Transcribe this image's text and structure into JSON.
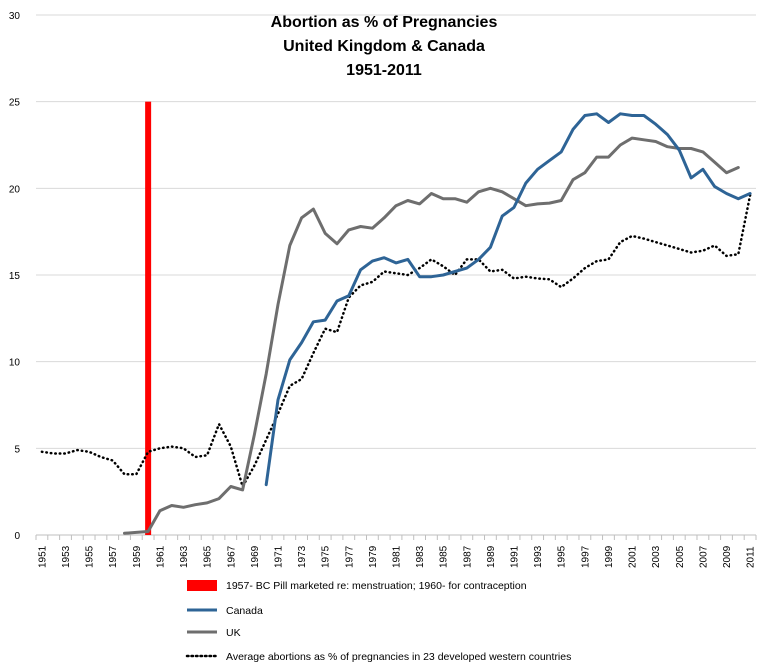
{
  "chart_data": {
    "type": "line",
    "title": [
      "Abortion as % of Pregnancies",
      "United Kingdom & Canada",
      "1951-2011"
    ],
    "ylim": [
      0,
      30
    ],
    "yticks": [
      0,
      5,
      10,
      15,
      20,
      25,
      30
    ],
    "xlim": [
      1951,
      2011
    ],
    "xtick_labels": [
      "1951",
      "1953",
      "1955",
      "1957",
      "1959",
      "1961",
      "1963",
      "1965",
      "1967",
      "1969",
      "1971",
      "1973",
      "1975",
      "1977",
      "1979",
      "1981",
      "1983",
      "1985",
      "1987",
      "1989",
      "1991",
      "1993",
      "1995",
      "1997",
      "1999",
      "2001",
      "2003",
      "2005",
      "2007",
      "2009",
      "2011"
    ],
    "gridlines": "horizontal",
    "legend_position": "bottom",
    "marker": {
      "name": "1957- BC Pill marketed re: menstruation; 1960- for contraception",
      "x": 1960,
      "y_range": [
        0,
        25
      ],
      "color": "#ff0000"
    },
    "series": [
      {
        "name": "Canada",
        "color": "#2e6496",
        "style": "solid",
        "x": [
          1970,
          1971,
          1972,
          1973,
          1974,
          1975,
          1976,
          1977,
          1978,
          1979,
          1980,
          1981,
          1982,
          1983,
          1984,
          1985,
          1986,
          1987,
          1988,
          1989,
          1990,
          1991,
          1992,
          1993,
          1994,
          1995,
          1996,
          1997,
          1998,
          1999,
          2000,
          2001,
          2002,
          2003,
          2004,
          2005,
          2006,
          2007,
          2008,
          2009,
          2010,
          2011
        ],
        "values": [
          2.9,
          7.8,
          10.1,
          11.1,
          12.3,
          12.4,
          13.5,
          13.8,
          15.3,
          15.8,
          16.0,
          15.7,
          15.9,
          14.9,
          14.9,
          15.0,
          15.2,
          15.4,
          15.9,
          16.6,
          18.4,
          18.9,
          20.3,
          21.1,
          21.6,
          22.1,
          23.4,
          24.2,
          24.3,
          23.8,
          24.3,
          24.2,
          24.2,
          23.7,
          23.1,
          22.2,
          20.6,
          21.1,
          20.1,
          19.7,
          19.4,
          19.7
        ]
      },
      {
        "name": "UK",
        "color": "#6e6e6e",
        "style": "solid",
        "x": [
          1958,
          1959,
          1960,
          1961,
          1962,
          1963,
          1964,
          1965,
          1966,
          1967,
          1968,
          1969,
          1970,
          1971,
          1972,
          1973,
          1974,
          1975,
          1976,
          1977,
          1978,
          1979,
          1980,
          1981,
          1982,
          1983,
          1984,
          1985,
          1986,
          1987,
          1988,
          1989,
          1990,
          1991,
          1992,
          1993,
          1994,
          1995,
          1996,
          1997,
          1998,
          1999,
          2000,
          2001,
          2002,
          2003,
          2004,
          2005,
          2006,
          2007,
          2008,
          2009,
          2010
        ],
        "values": [
          0.1,
          0.15,
          0.2,
          1.4,
          1.7,
          1.6,
          1.75,
          1.85,
          2.1,
          2.8,
          2.6,
          5.8,
          9.3,
          13.3,
          16.7,
          18.3,
          18.8,
          17.4,
          16.8,
          17.6,
          17.8,
          17.7,
          18.3,
          19.0,
          19.3,
          19.1,
          19.7,
          19.4,
          19.4,
          19.2,
          19.8,
          20.0,
          19.8,
          19.4,
          19.0,
          19.1,
          19.15,
          19.3,
          20.5,
          20.9,
          21.8,
          21.8,
          22.5,
          22.9,
          22.8,
          22.7,
          22.4,
          22.3,
          22.3,
          22.1,
          21.5,
          20.9,
          21.2
        ]
      },
      {
        "name": "Average abortions as % of pregnancies in 23 developed western countries",
        "color": "#000000",
        "style": "dotted",
        "x": [
          1951,
          1952,
          1953,
          1954,
          1955,
          1956,
          1957,
          1958,
          1959,
          1960,
          1961,
          1962,
          1963,
          1964,
          1965,
          1966,
          1967,
          1968,
          1969,
          1970,
          1971,
          1972,
          1973,
          1974,
          1975,
          1976,
          1977,
          1978,
          1979,
          1980,
          1981,
          1982,
          1983,
          1984,
          1985,
          1986,
          1987,
          1988,
          1989,
          1990,
          1991,
          1992,
          1993,
          1994,
          1995,
          1996,
          1997,
          1998,
          1999,
          2000,
          2001,
          2002,
          2003,
          2004,
          2005,
          2006,
          2007,
          2008,
          2009,
          2010,
          2011
        ],
        "values": [
          4.8,
          4.7,
          4.7,
          4.9,
          4.8,
          4.5,
          4.3,
          3.5,
          3.5,
          4.8,
          5.0,
          5.1,
          5.0,
          4.5,
          4.6,
          6.4,
          5.1,
          2.8,
          4.0,
          5.5,
          7.0,
          8.6,
          9.0,
          10.5,
          11.9,
          11.7,
          13.7,
          14.4,
          14.6,
          15.2,
          15.1,
          15.0,
          15.4,
          15.9,
          15.5,
          15.0,
          15.9,
          15.9,
          15.2,
          15.3,
          14.8,
          14.9,
          14.8,
          14.75,
          14.3,
          14.8,
          15.4,
          15.8,
          15.9,
          16.9,
          17.25,
          17.1,
          16.9,
          16.7,
          16.5,
          16.3,
          16.4,
          16.7,
          16.1,
          16.2,
          19.6
        ]
      }
    ]
  }
}
